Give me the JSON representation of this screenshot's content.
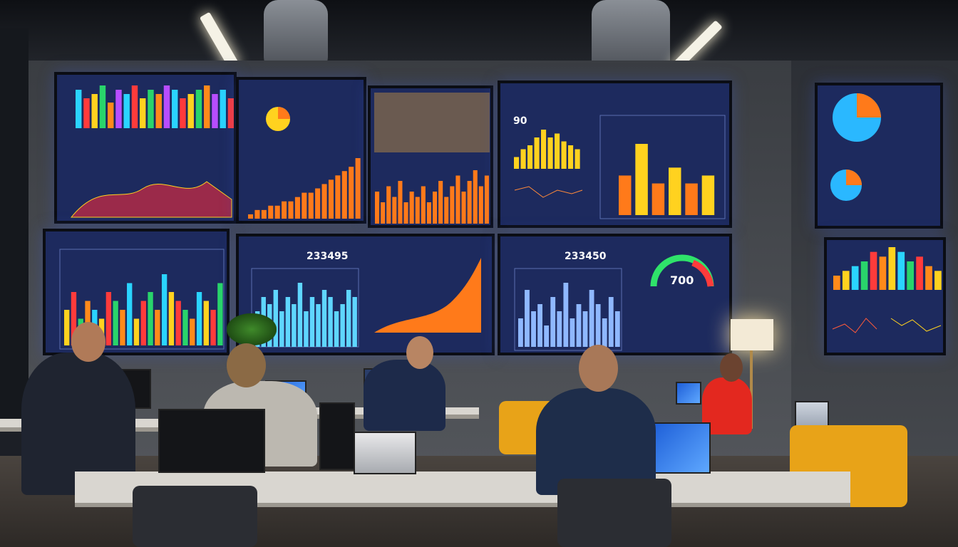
{
  "screens": {
    "s1": {
      "bars": [
        9,
        7,
        8,
        10,
        6,
        9,
        8,
        10,
        7,
        9,
        8,
        10,
        9,
        7,
        8,
        9,
        10,
        8,
        9,
        7
      ],
      "colors": [
        "#2ad4ff",
        "#ff3b3b",
        "#ffd21f",
        "#29d46b",
        "#ff8a1a",
        "#b84dff"
      ]
    },
    "s2": {
      "bars": [
        1,
        2,
        2,
        3,
        3,
        4,
        4,
        5,
        6,
        6,
        7,
        8,
        9,
        10,
        11,
        12,
        14
      ]
    },
    "s3": {
      "bars": [
        6,
        4,
        7,
        5,
        8,
        4,
        6,
        5,
        7,
        4,
        6,
        8,
        5,
        7,
        9,
        6,
        8,
        10,
        7,
        9
      ]
    },
    "s4_small": {
      "value": "90",
      "bars": [
        3,
        5,
        6,
        8,
        10,
        8,
        9,
        7,
        6,
        5
      ]
    },
    "s4_big": {
      "bars": [
        5,
        9,
        4,
        6,
        4,
        5
      ],
      "colors": [
        "#ff7a1a",
        "#ffd21f",
        "#ff7a1a",
        "#ffd21f",
        "#ff7a1a",
        "#ffd21f"
      ]
    },
    "s6": {
      "bars": [
        4,
        6,
        3,
        5,
        4,
        3,
        6,
        5,
        4,
        7,
        3,
        5,
        6,
        4,
        8,
        6,
        5,
        4,
        3,
        6,
        5,
        4,
        7
      ]
    },
    "s7": {
      "value": "233495",
      "bars": [
        5,
        7,
        6,
        8,
        5,
        7,
        6,
        9,
        5,
        7,
        6,
        8,
        7,
        5,
        6,
        8,
        7
      ]
    },
    "s8": {
      "value": "233450",
      "gauge_value": "700",
      "bars": [
        4,
        8,
        5,
        6,
        3,
        7,
        5,
        9,
        4,
        6,
        5,
        8,
        6,
        4,
        7,
        5
      ]
    },
    "s9": {
      "bars": [
        3,
        4,
        5,
        6,
        8,
        7,
        9,
        8,
        6,
        7,
        5,
        4
      ]
    }
  },
  "colors": {
    "screen_bg": "#1d2a5e",
    "orange": "#ff7a1a",
    "yellow": "#ffd21f",
    "cyan": "#5fd6ff"
  }
}
